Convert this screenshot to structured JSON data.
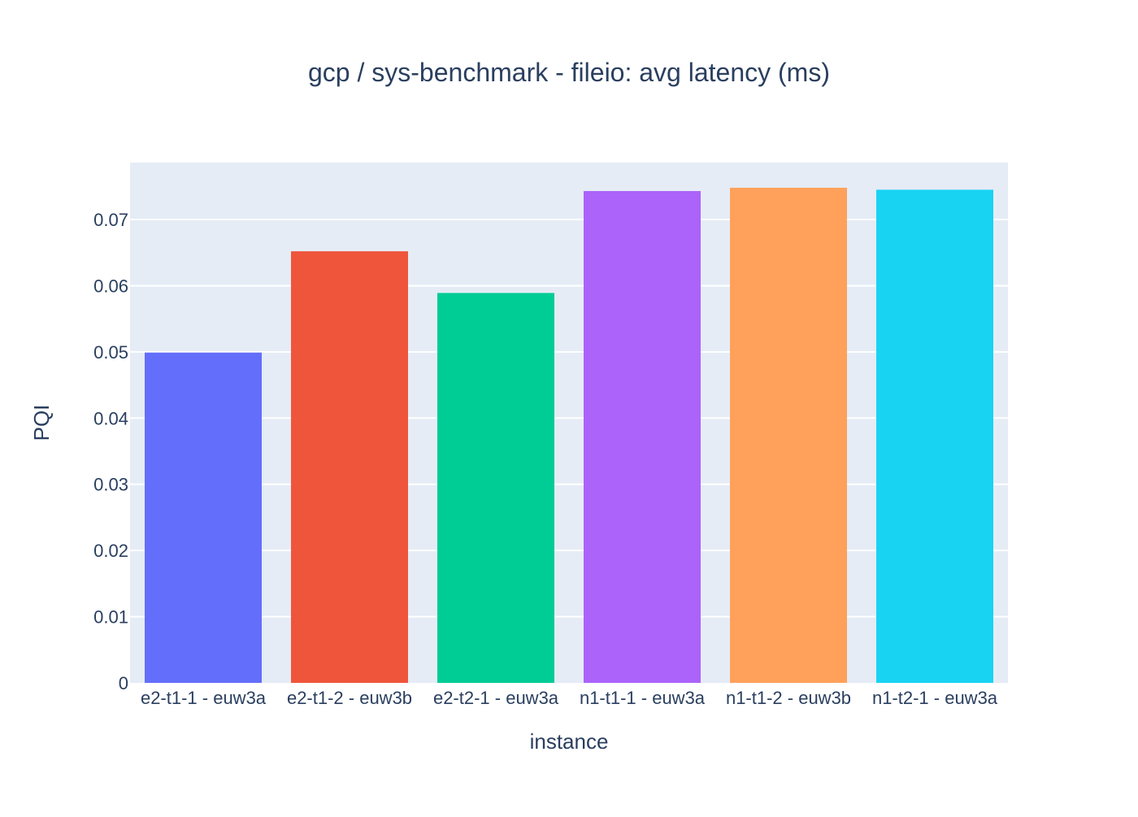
{
  "chart_data": {
    "type": "bar",
    "title": "gcp / sys-benchmark - fileio: avg latency (ms)",
    "xlabel": "instance",
    "ylabel": "PQI",
    "categories": [
      "e2-t1-1 - euw3a",
      "e2-t1-2 - euw3b",
      "e2-t2-1 - euw3a",
      "n1-t1-1 - euw3a",
      "n1-t1-2 - euw3b",
      "n1-t2-1 - euw3a"
    ],
    "values": [
      0.0499,
      0.0652,
      0.0589,
      0.0743,
      0.0748,
      0.0745
    ],
    "colors": [
      "#636efa",
      "#ef553b",
      "#00cc96",
      "#ab63fa",
      "#ffa15a",
      "#19d3f3"
    ],
    "ylim": [
      0,
      0.0786
    ],
    "yticks": [
      0,
      0.01,
      0.02,
      0.03,
      0.04,
      0.05,
      0.06,
      0.07
    ],
    "ytick_labels": [
      "0",
      "0.01",
      "0.02",
      "0.03",
      "0.04",
      "0.05",
      "0.06",
      "0.07"
    ],
    "grid": true,
    "legend": "none",
    "plot_background": "#e5ecf6",
    "text_color": "#2a3f5f"
  }
}
